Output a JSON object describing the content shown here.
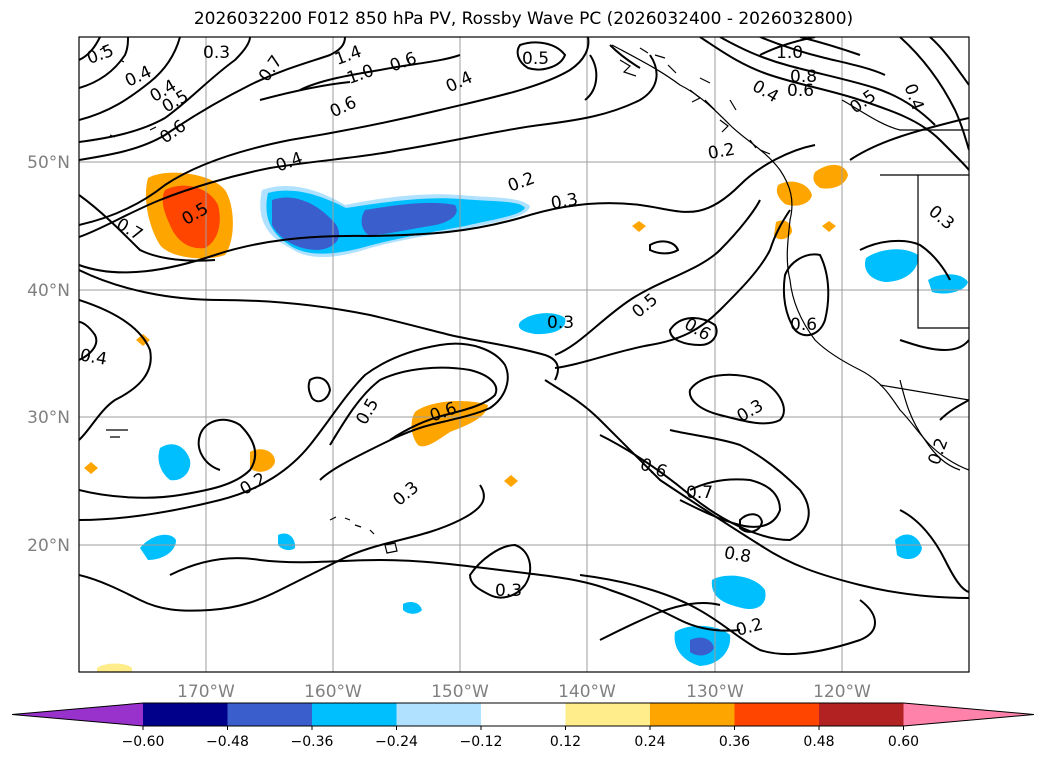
{
  "title": "2026032200 F012 850 hPa PV, Rossby Wave PC (2026032400 - 2026032800)",
  "lat_labels": [
    "50°N",
    "40°N",
    "30°N",
    "20°N"
  ],
  "lon_labels": [
    "170°W",
    "160°W",
    "150°W",
    "140°W",
    "130°W",
    "120°W"
  ],
  "contour_labels": [
    "0.5",
    "0.3",
    "0.4",
    "0.4",
    "0.5",
    "0.6",
    "0.7",
    "1.4",
    "1.0",
    "0.6",
    "0.6",
    "0.4",
    "0.5",
    "1.0",
    "0.8",
    "0.6",
    "0.4",
    "0.5",
    "0.4",
    "0.2",
    "0.4",
    "0.2",
    "0.3",
    "0.3",
    "0.5",
    "0.7",
    "0.5",
    "0.3",
    "0.6",
    "0.6",
    "0.4",
    "0.5",
    "0.6",
    "0.3",
    "0.6",
    "0.7",
    "0.8",
    "0.2",
    "0.2",
    "0.3",
    "0.3",
    "0.2"
  ],
  "colorbar": {
    "ticks": [
      "−0.60",
      "−0.48",
      "−0.36",
      "−0.24",
      "−0.12",
      "0.12",
      "0.24",
      "0.36",
      "0.48",
      "0.60"
    ],
    "colors": [
      "#9932cc",
      "#00008b",
      "#3a5fcd",
      "#00bfff",
      "#b0e2ff",
      "#ffffff",
      "#ffec8b",
      "#ffa500",
      "#ff4500",
      "#b22222",
      "#ff82ab"
    ]
  },
  "shading_colors": {
    "light_blue": "#b0e2ff",
    "blue": "#00bfff",
    "dark_blue": "#3a5fcd",
    "light_orange": "#ffec8b",
    "orange": "#ffa500",
    "red_orange": "#ff4500"
  }
}
